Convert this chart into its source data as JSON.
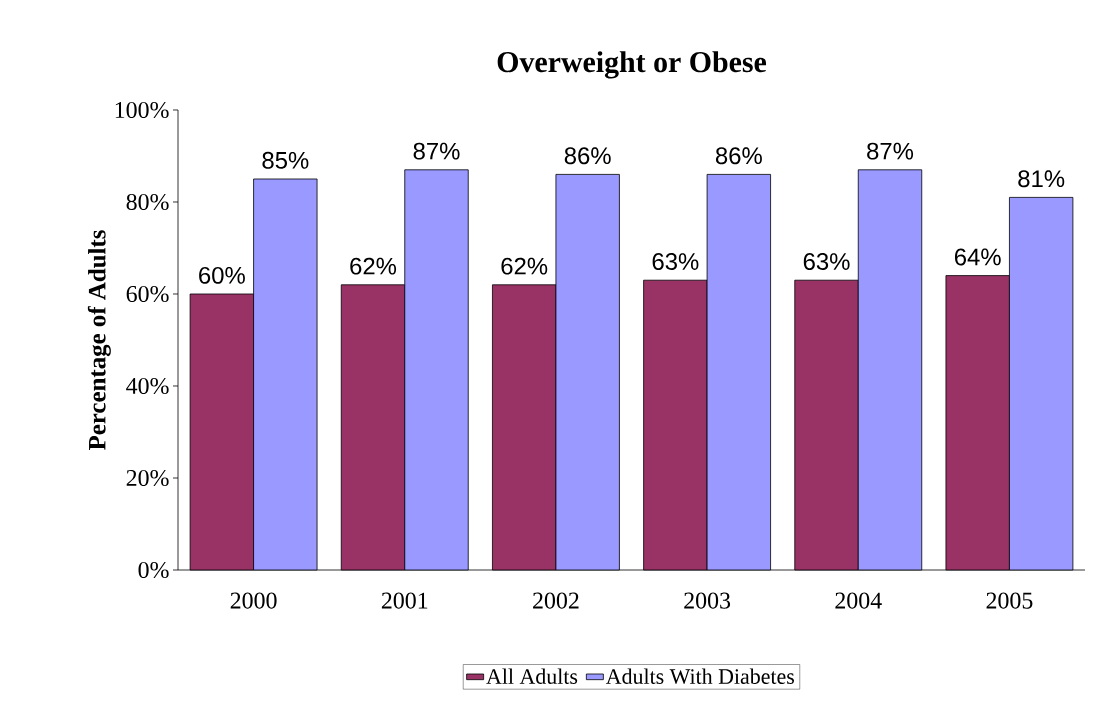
{
  "chart_data": {
    "type": "bar",
    "title": "Overweight or Obese",
    "ylabel": "Percentage of Adults",
    "categories": [
      "2000",
      "2001",
      "2002",
      "2003",
      "2004",
      "2005"
    ],
    "series": [
      {
        "name": "All Adults",
        "color": "#993366",
        "values": [
          60,
          62,
          62,
          63,
          63,
          64
        ],
        "value_labels": [
          "60%",
          "62%",
          "62%",
          "63%",
          "63%",
          "64%"
        ]
      },
      {
        "name": "Adults With Diabetes",
        "color": "#9999ff",
        "values": [
          85,
          87,
          86,
          86,
          87,
          81
        ],
        "value_labels": [
          "85%",
          "87%",
          "86%",
          "86%",
          "87%",
          "81%"
        ]
      }
    ],
    "ylim": [
      0,
      100
    ],
    "yticks": [
      {
        "value": 0,
        "label": "0%"
      },
      {
        "value": 20,
        "label": "20%"
      },
      {
        "value": 40,
        "label": "40%"
      },
      {
        "value": 60,
        "label": "60%"
      },
      {
        "value": 80,
        "label": "80%"
      },
      {
        "value": 100,
        "label": "100%"
      }
    ],
    "grid": false,
    "legend": "bottom"
  }
}
